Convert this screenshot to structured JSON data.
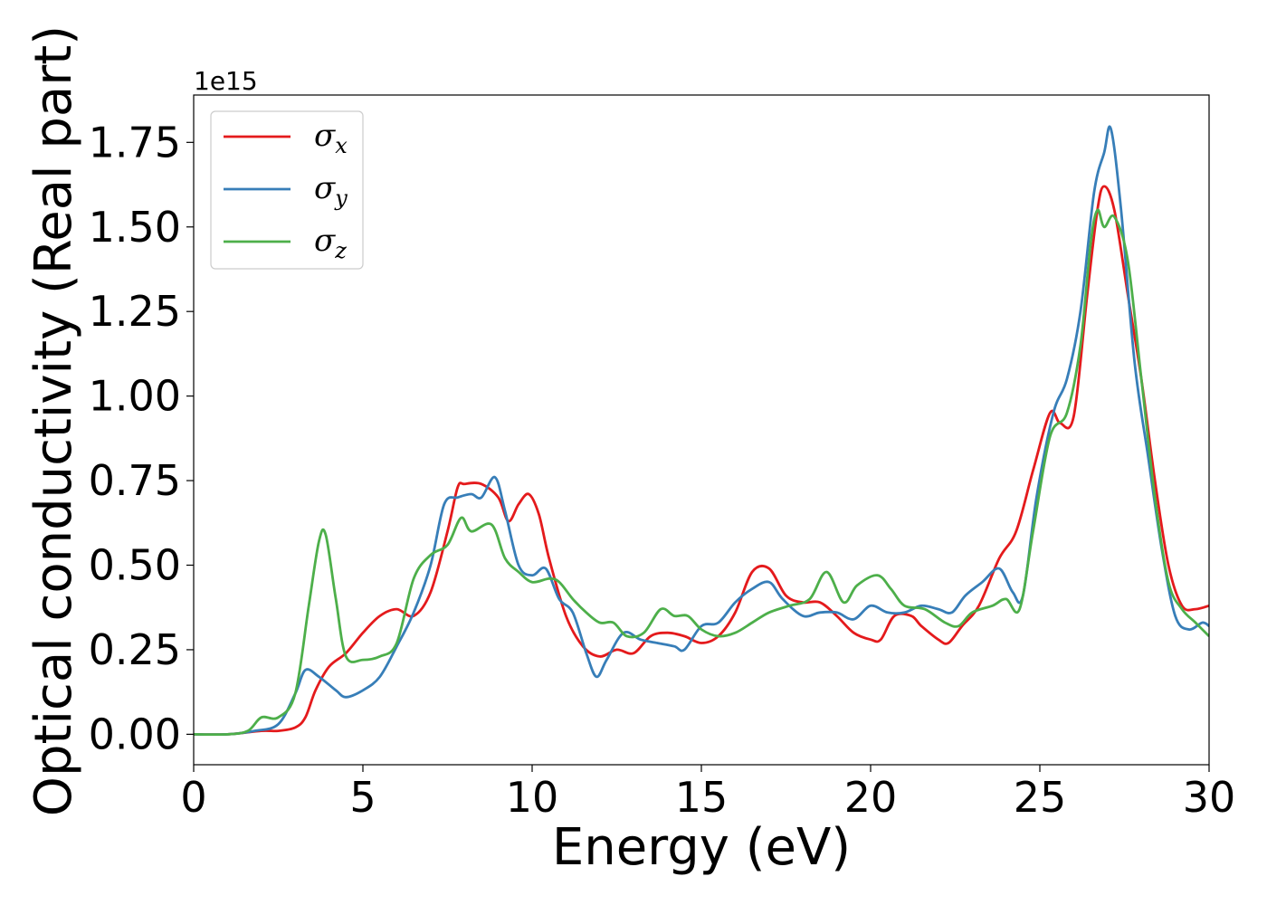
{
  "chart_data": {
    "type": "line",
    "title": "",
    "xlabel": "Energy (eV)",
    "ylabel": "Optical conductivity (Real part)",
    "y_offset_label": "1e15",
    "xlim": [
      0,
      30
    ],
    "ylim": [
      -0.09,
      1.89
    ],
    "xticks": [
      0,
      5,
      10,
      15,
      20,
      25,
      30
    ],
    "xtick_labels": [
      "0",
      "5",
      "10",
      "15",
      "20",
      "25",
      "30"
    ],
    "yticks": [
      0.0,
      0.25,
      0.5,
      0.75,
      1.0,
      1.25,
      1.5,
      1.75
    ],
    "ytick_labels": [
      "0.00",
      "0.25",
      "0.50",
      "0.75",
      "1.00",
      "1.25",
      "1.50",
      "1.75"
    ],
    "grid": false,
    "legend_position": "upper-left",
    "series": [
      {
        "name": "σx",
        "symbol": "σ",
        "sub": "x",
        "color": "#e41a1c",
        "points": [
          [
            0,
            0
          ],
          [
            1,
            0
          ],
          [
            2,
            0.01
          ],
          [
            2.5,
            0.01
          ],
          [
            3,
            0.02
          ],
          [
            3.3,
            0.05
          ],
          [
            3.6,
            0.13
          ],
          [
            4,
            0.2
          ],
          [
            4.5,
            0.24
          ],
          [
            5,
            0.3
          ],
          [
            5.5,
            0.35
          ],
          [
            6,
            0.37
          ],
          [
            6.5,
            0.35
          ],
          [
            7,
            0.42
          ],
          [
            7.5,
            0.6
          ],
          [
            7.8,
            0.73
          ],
          [
            8,
            0.74
          ],
          [
            8.5,
            0.74
          ],
          [
            9,
            0.7
          ],
          [
            9.3,
            0.63
          ],
          [
            9.6,
            0.68
          ],
          [
            9.9,
            0.71
          ],
          [
            10.2,
            0.65
          ],
          [
            10.5,
            0.52
          ],
          [
            11,
            0.35
          ],
          [
            11.5,
            0.26
          ],
          [
            12,
            0.23
          ],
          [
            12.5,
            0.25
          ],
          [
            13,
            0.24
          ],
          [
            13.5,
            0.29
          ],
          [
            14,
            0.3
          ],
          [
            14.5,
            0.29
          ],
          [
            15,
            0.27
          ],
          [
            15.5,
            0.29
          ],
          [
            16,
            0.36
          ],
          [
            16.5,
            0.48
          ],
          [
            17,
            0.49
          ],
          [
            17.5,
            0.41
          ],
          [
            18,
            0.39
          ],
          [
            18.5,
            0.39
          ],
          [
            19,
            0.35
          ],
          [
            19.5,
            0.3
          ],
          [
            20,
            0.28
          ],
          [
            20.3,
            0.28
          ],
          [
            20.7,
            0.35
          ],
          [
            21.2,
            0.35
          ],
          [
            21.5,
            0.32
          ],
          [
            22,
            0.28
          ],
          [
            22.3,
            0.27
          ],
          [
            22.7,
            0.32
          ],
          [
            23.2,
            0.38
          ],
          [
            23.8,
            0.52
          ],
          [
            24.3,
            0.6
          ],
          [
            24.8,
            0.78
          ],
          [
            25.3,
            0.95
          ],
          [
            25.6,
            0.92
          ],
          [
            26,
            0.94
          ],
          [
            26.4,
            1.3
          ],
          [
            26.7,
            1.55
          ],
          [
            26.9,
            1.62
          ],
          [
            27.2,
            1.55
          ],
          [
            27.6,
            1.3
          ],
          [
            28,
            1.05
          ],
          [
            28.4,
            0.75
          ],
          [
            28.8,
            0.5
          ],
          [
            29.2,
            0.38
          ],
          [
            29.6,
            0.37
          ],
          [
            30,
            0.38
          ]
        ]
      },
      {
        "name": "σy",
        "symbol": "σ",
        "sub": "y",
        "color": "#377eb8",
        "points": [
          [
            0,
            0
          ],
          [
            1,
            0
          ],
          [
            1.8,
            0.01
          ],
          [
            2.5,
            0.03
          ],
          [
            3,
            0.12
          ],
          [
            3.3,
            0.19
          ],
          [
            3.7,
            0.17
          ],
          [
            4.2,
            0.13
          ],
          [
            4.5,
            0.11
          ],
          [
            5,
            0.13
          ],
          [
            5.5,
            0.17
          ],
          [
            6,
            0.26
          ],
          [
            6.5,
            0.36
          ],
          [
            7,
            0.5
          ],
          [
            7.4,
            0.68
          ],
          [
            7.8,
            0.7
          ],
          [
            8.2,
            0.71
          ],
          [
            8.5,
            0.7
          ],
          [
            8.9,
            0.76
          ],
          [
            9.2,
            0.66
          ],
          [
            9.6,
            0.5
          ],
          [
            10,
            0.47
          ],
          [
            10.4,
            0.49
          ],
          [
            10.8,
            0.4
          ],
          [
            11.2,
            0.36
          ],
          [
            11.6,
            0.24
          ],
          [
            11.9,
            0.17
          ],
          [
            12.2,
            0.22
          ],
          [
            12.7,
            0.3
          ],
          [
            13.2,
            0.28
          ],
          [
            13.7,
            0.27
          ],
          [
            14.2,
            0.26
          ],
          [
            14.5,
            0.25
          ],
          [
            15,
            0.32
          ],
          [
            15.5,
            0.33
          ],
          [
            16,
            0.39
          ],
          [
            16.5,
            0.43
          ],
          [
            17,
            0.45
          ],
          [
            17.4,
            0.4
          ],
          [
            18,
            0.35
          ],
          [
            18.5,
            0.36
          ],
          [
            19,
            0.36
          ],
          [
            19.5,
            0.34
          ],
          [
            20,
            0.38
          ],
          [
            20.5,
            0.36
          ],
          [
            21,
            0.36
          ],
          [
            21.5,
            0.38
          ],
          [
            22,
            0.37
          ],
          [
            22.4,
            0.36
          ],
          [
            22.8,
            0.41
          ],
          [
            23.3,
            0.45
          ],
          [
            23.8,
            0.49
          ],
          [
            24.2,
            0.42
          ],
          [
            24.5,
            0.41
          ],
          [
            24.9,
            0.7
          ],
          [
            25.4,
            0.95
          ],
          [
            25.8,
            1.05
          ],
          [
            26.2,
            1.25
          ],
          [
            26.6,
            1.6
          ],
          [
            26.9,
            1.72
          ],
          [
            27.1,
            1.79
          ],
          [
            27.4,
            1.55
          ],
          [
            27.8,
            1.1
          ],
          [
            28.2,
            0.82
          ],
          [
            28.6,
            0.55
          ],
          [
            29,
            0.35
          ],
          [
            29.4,
            0.31
          ],
          [
            29.8,
            0.33
          ],
          [
            30,
            0.32
          ]
        ]
      },
      {
        "name": "σz",
        "symbol": "σ",
        "sub": "z",
        "color": "#4daf4a",
        "points": [
          [
            0,
            0
          ],
          [
            1,
            0
          ],
          [
            1.6,
            0.01
          ],
          [
            2,
            0.05
          ],
          [
            2.5,
            0.05
          ],
          [
            3,
            0.12
          ],
          [
            3.4,
            0.38
          ],
          [
            3.7,
            0.57
          ],
          [
            3.9,
            0.59
          ],
          [
            4.2,
            0.4
          ],
          [
            4.5,
            0.23
          ],
          [
            5,
            0.22
          ],
          [
            5.5,
            0.23
          ],
          [
            6,
            0.27
          ],
          [
            6.5,
            0.46
          ],
          [
            7,
            0.53
          ],
          [
            7.5,
            0.56
          ],
          [
            7.9,
            0.64
          ],
          [
            8.2,
            0.6
          ],
          [
            8.8,
            0.62
          ],
          [
            9.2,
            0.52
          ],
          [
            9.6,
            0.48
          ],
          [
            10,
            0.45
          ],
          [
            10.5,
            0.46
          ],
          [
            10.8,
            0.45
          ],
          [
            11.2,
            0.4
          ],
          [
            11.6,
            0.36
          ],
          [
            12,
            0.33
          ],
          [
            12.4,
            0.33
          ],
          [
            12.8,
            0.29
          ],
          [
            13.3,
            0.3
          ],
          [
            13.8,
            0.37
          ],
          [
            14.2,
            0.35
          ],
          [
            14.6,
            0.35
          ],
          [
            15,
            0.31
          ],
          [
            15.5,
            0.29
          ],
          [
            16,
            0.3
          ],
          [
            16.5,
            0.33
          ],
          [
            17,
            0.36
          ],
          [
            17.6,
            0.38
          ],
          [
            18.2,
            0.4
          ],
          [
            18.7,
            0.48
          ],
          [
            19.2,
            0.39
          ],
          [
            19.6,
            0.44
          ],
          [
            20.2,
            0.47
          ],
          [
            20.6,
            0.43
          ],
          [
            21,
            0.38
          ],
          [
            21.6,
            0.37
          ],
          [
            22.2,
            0.33
          ],
          [
            22.6,
            0.32
          ],
          [
            23,
            0.36
          ],
          [
            23.6,
            0.38
          ],
          [
            24,
            0.4
          ],
          [
            24.4,
            0.37
          ],
          [
            24.8,
            0.6
          ],
          [
            25.3,
            0.88
          ],
          [
            25.8,
            0.95
          ],
          [
            26.2,
            1.15
          ],
          [
            26.5,
            1.45
          ],
          [
            26.7,
            1.55
          ],
          [
            26.9,
            1.5
          ],
          [
            27.2,
            1.53
          ],
          [
            27.6,
            1.4
          ],
          [
            28,
            1.05
          ],
          [
            28.4,
            0.7
          ],
          [
            28.8,
            0.45
          ],
          [
            29.2,
            0.37
          ],
          [
            29.6,
            0.33
          ],
          [
            30,
            0.29
          ]
        ]
      }
    ]
  }
}
